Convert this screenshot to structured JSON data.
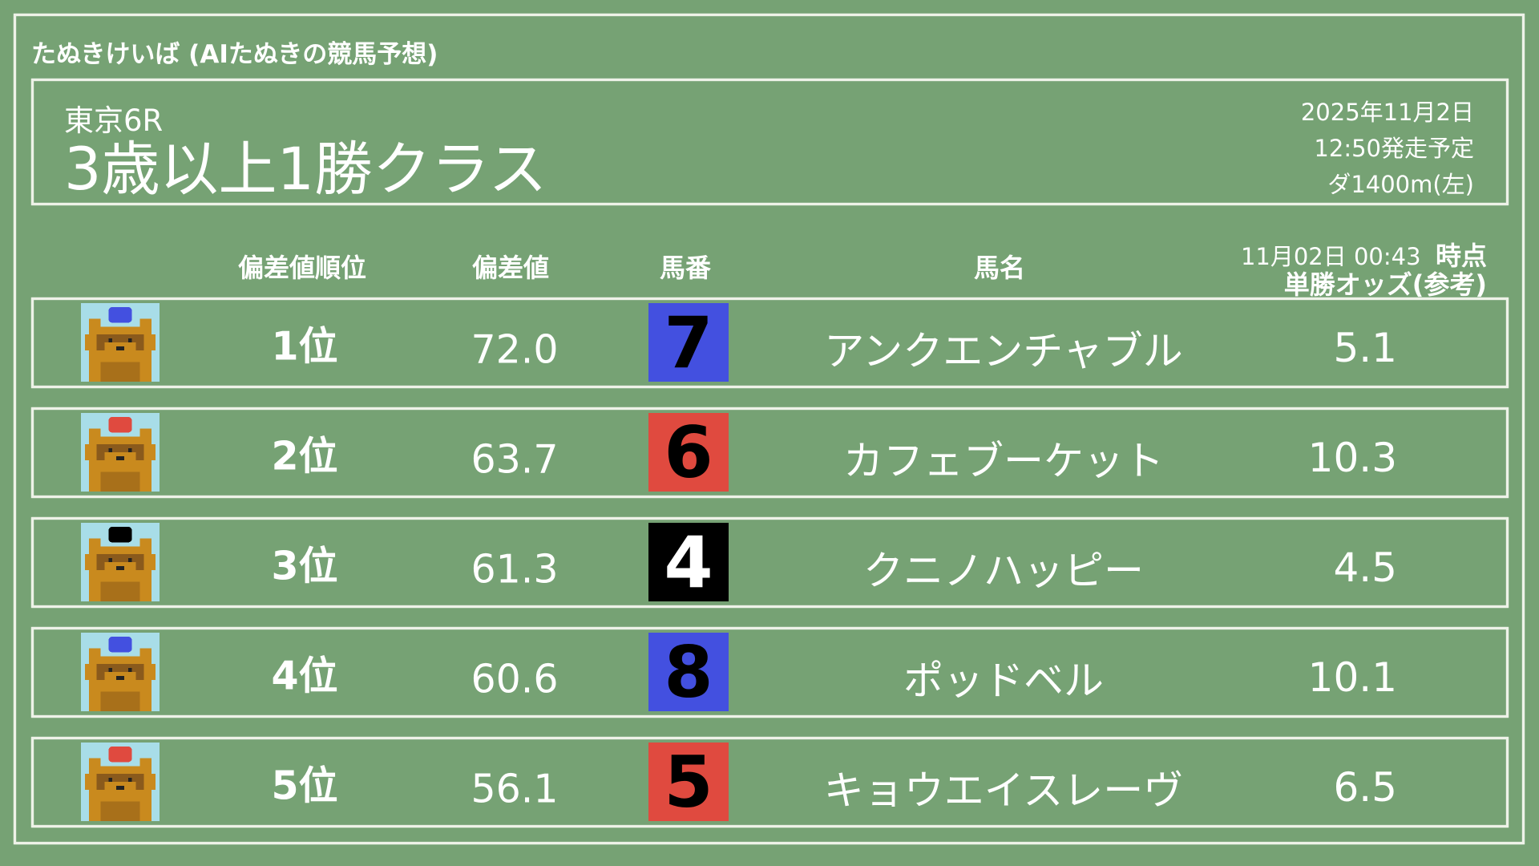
{
  "app_title": "たぬきけいば (AIたぬきの競馬予想)",
  "race": {
    "venue": "東京6R",
    "name": "3歳以上1勝クラス",
    "date": "2025年11月2日",
    "start_time": "12:50発走予定",
    "course": "ダ1400m(左)"
  },
  "columns": {
    "rank": "偏差値順位",
    "deviation": "偏差値",
    "number": "馬番",
    "name": "馬名",
    "odds_time": "11月02日 00:43",
    "odds_time_suffix": "時点",
    "odds": "単勝オッズ(参考)"
  },
  "rows": [
    {
      "rank": "1位",
      "deviation": "72.0",
      "number": "7",
      "name": "アンクエンチャブル",
      "odds": "5.1",
      "color": "#4350e0",
      "digit_color": "#000000",
      "icon": "tanuki-icon"
    },
    {
      "rank": "2位",
      "deviation": "63.7",
      "number": "6",
      "name": "カフェブーケット",
      "odds": "10.3",
      "color": "#e04a3f",
      "digit_color": "#000000",
      "icon": "tanuki-icon"
    },
    {
      "rank": "3位",
      "deviation": "61.3",
      "number": "4",
      "name": "クニノハッピー",
      "odds": "4.5",
      "color": "#000000",
      "digit_color": "#ffffff",
      "icon": "tanuki-icon"
    },
    {
      "rank": "4位",
      "deviation": "60.6",
      "number": "8",
      "name": "ポッドベル",
      "odds": "10.1",
      "color": "#4350e0",
      "digit_color": "#000000",
      "icon": "tanuki-icon"
    },
    {
      "rank": "5位",
      "deviation": "56.1",
      "number": "5",
      "name": "キョウエイスレーヴ",
      "odds": "6.5",
      "color": "#e04a3f",
      "digit_color": "#000000",
      "icon": "tanuki-icon"
    }
  ],
  "colors": {
    "background": "#76a274",
    "chalk": "#eef2e8"
  }
}
